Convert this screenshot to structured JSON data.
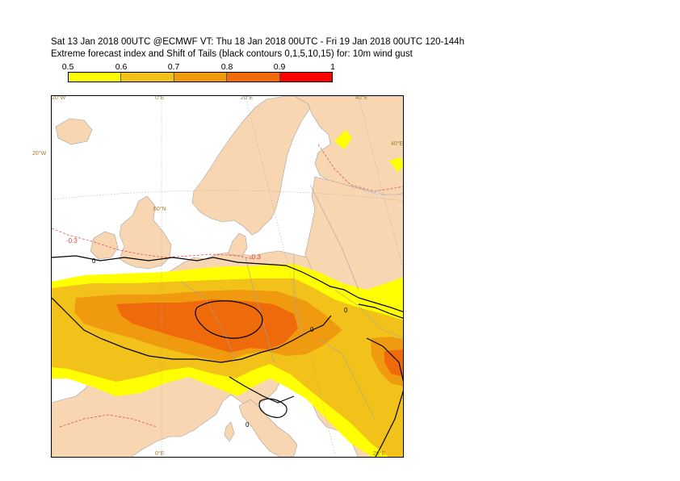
{
  "header": {
    "line1": "Sat 13 Jan 2018 00UTC @ECMWF VT: Thu 18 Jan 2018 00UTC - Fri 19 Jan 2018 00UTC  120-144h",
    "line2": "Extreme forecast index and Shift of Tails (black contours 0,1,5,10,15) for: 10m wind gust"
  },
  "legend": {
    "ticks": [
      "0.5",
      "0.6",
      "0.7",
      "0.8",
      "0.9",
      "1"
    ],
    "colors": [
      "#ffff00",
      "#f2c21a",
      "#f09a10",
      "#ee6a0a",
      "#ff0000"
    ]
  },
  "map": {
    "colors": {
      "sea": "#ffffff",
      "land": "#f8d6b1",
      "border": "#a3a3a3",
      "efi_05": "#ffff00",
      "efi_06": "#f2c21a",
      "efi_07": "#f09a10",
      "efi_08": "#ee6a0a",
      "sot": "#000000",
      "neg_efi": "#e04040",
      "grid": "#a0a0a0"
    },
    "grid_labels": {
      "lon_top_20w": "20°W",
      "lon_top_0e": "0°E",
      "lon_top_20e": "20°E",
      "lon_top_40e": "40°E",
      "lon_right_40e": "40°E",
      "lat_left_20w": "20°W",
      "lat_60n": "60°N",
      "lon_bottom_0e": "0°E",
      "lon_bottom_20e": "20°E"
    },
    "contour_labels": {
      "neg_a": "-0.3",
      "neg_b": "-0.3",
      "sot_a": "0",
      "sot_b": "0",
      "sot_c": "0",
      "sot_d": "0"
    }
  }
}
